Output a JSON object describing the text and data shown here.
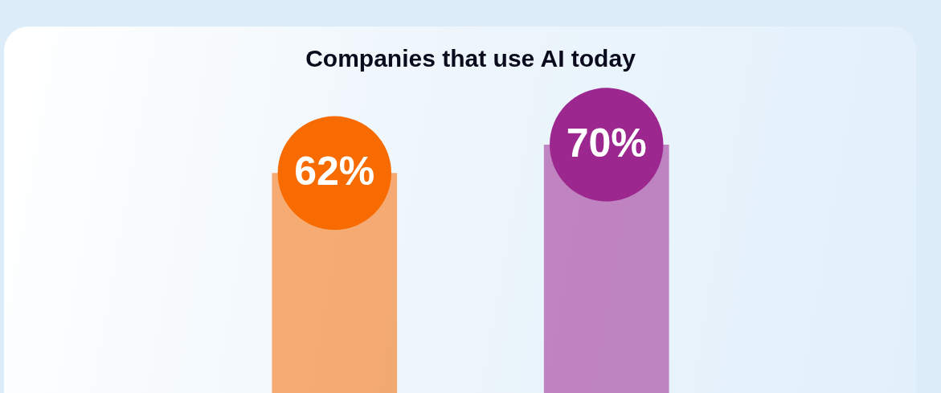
{
  "chart_data": {
    "type": "bar",
    "title": "Companies that use AI today",
    "categories": [
      null,
      null
    ],
    "values": [
      62,
      70
    ],
    "colors": [
      "#f76b00",
      "#9b278f"
    ],
    "value_labels": [
      "62%",
      "70%"
    ],
    "tick_labels": false
  }
}
